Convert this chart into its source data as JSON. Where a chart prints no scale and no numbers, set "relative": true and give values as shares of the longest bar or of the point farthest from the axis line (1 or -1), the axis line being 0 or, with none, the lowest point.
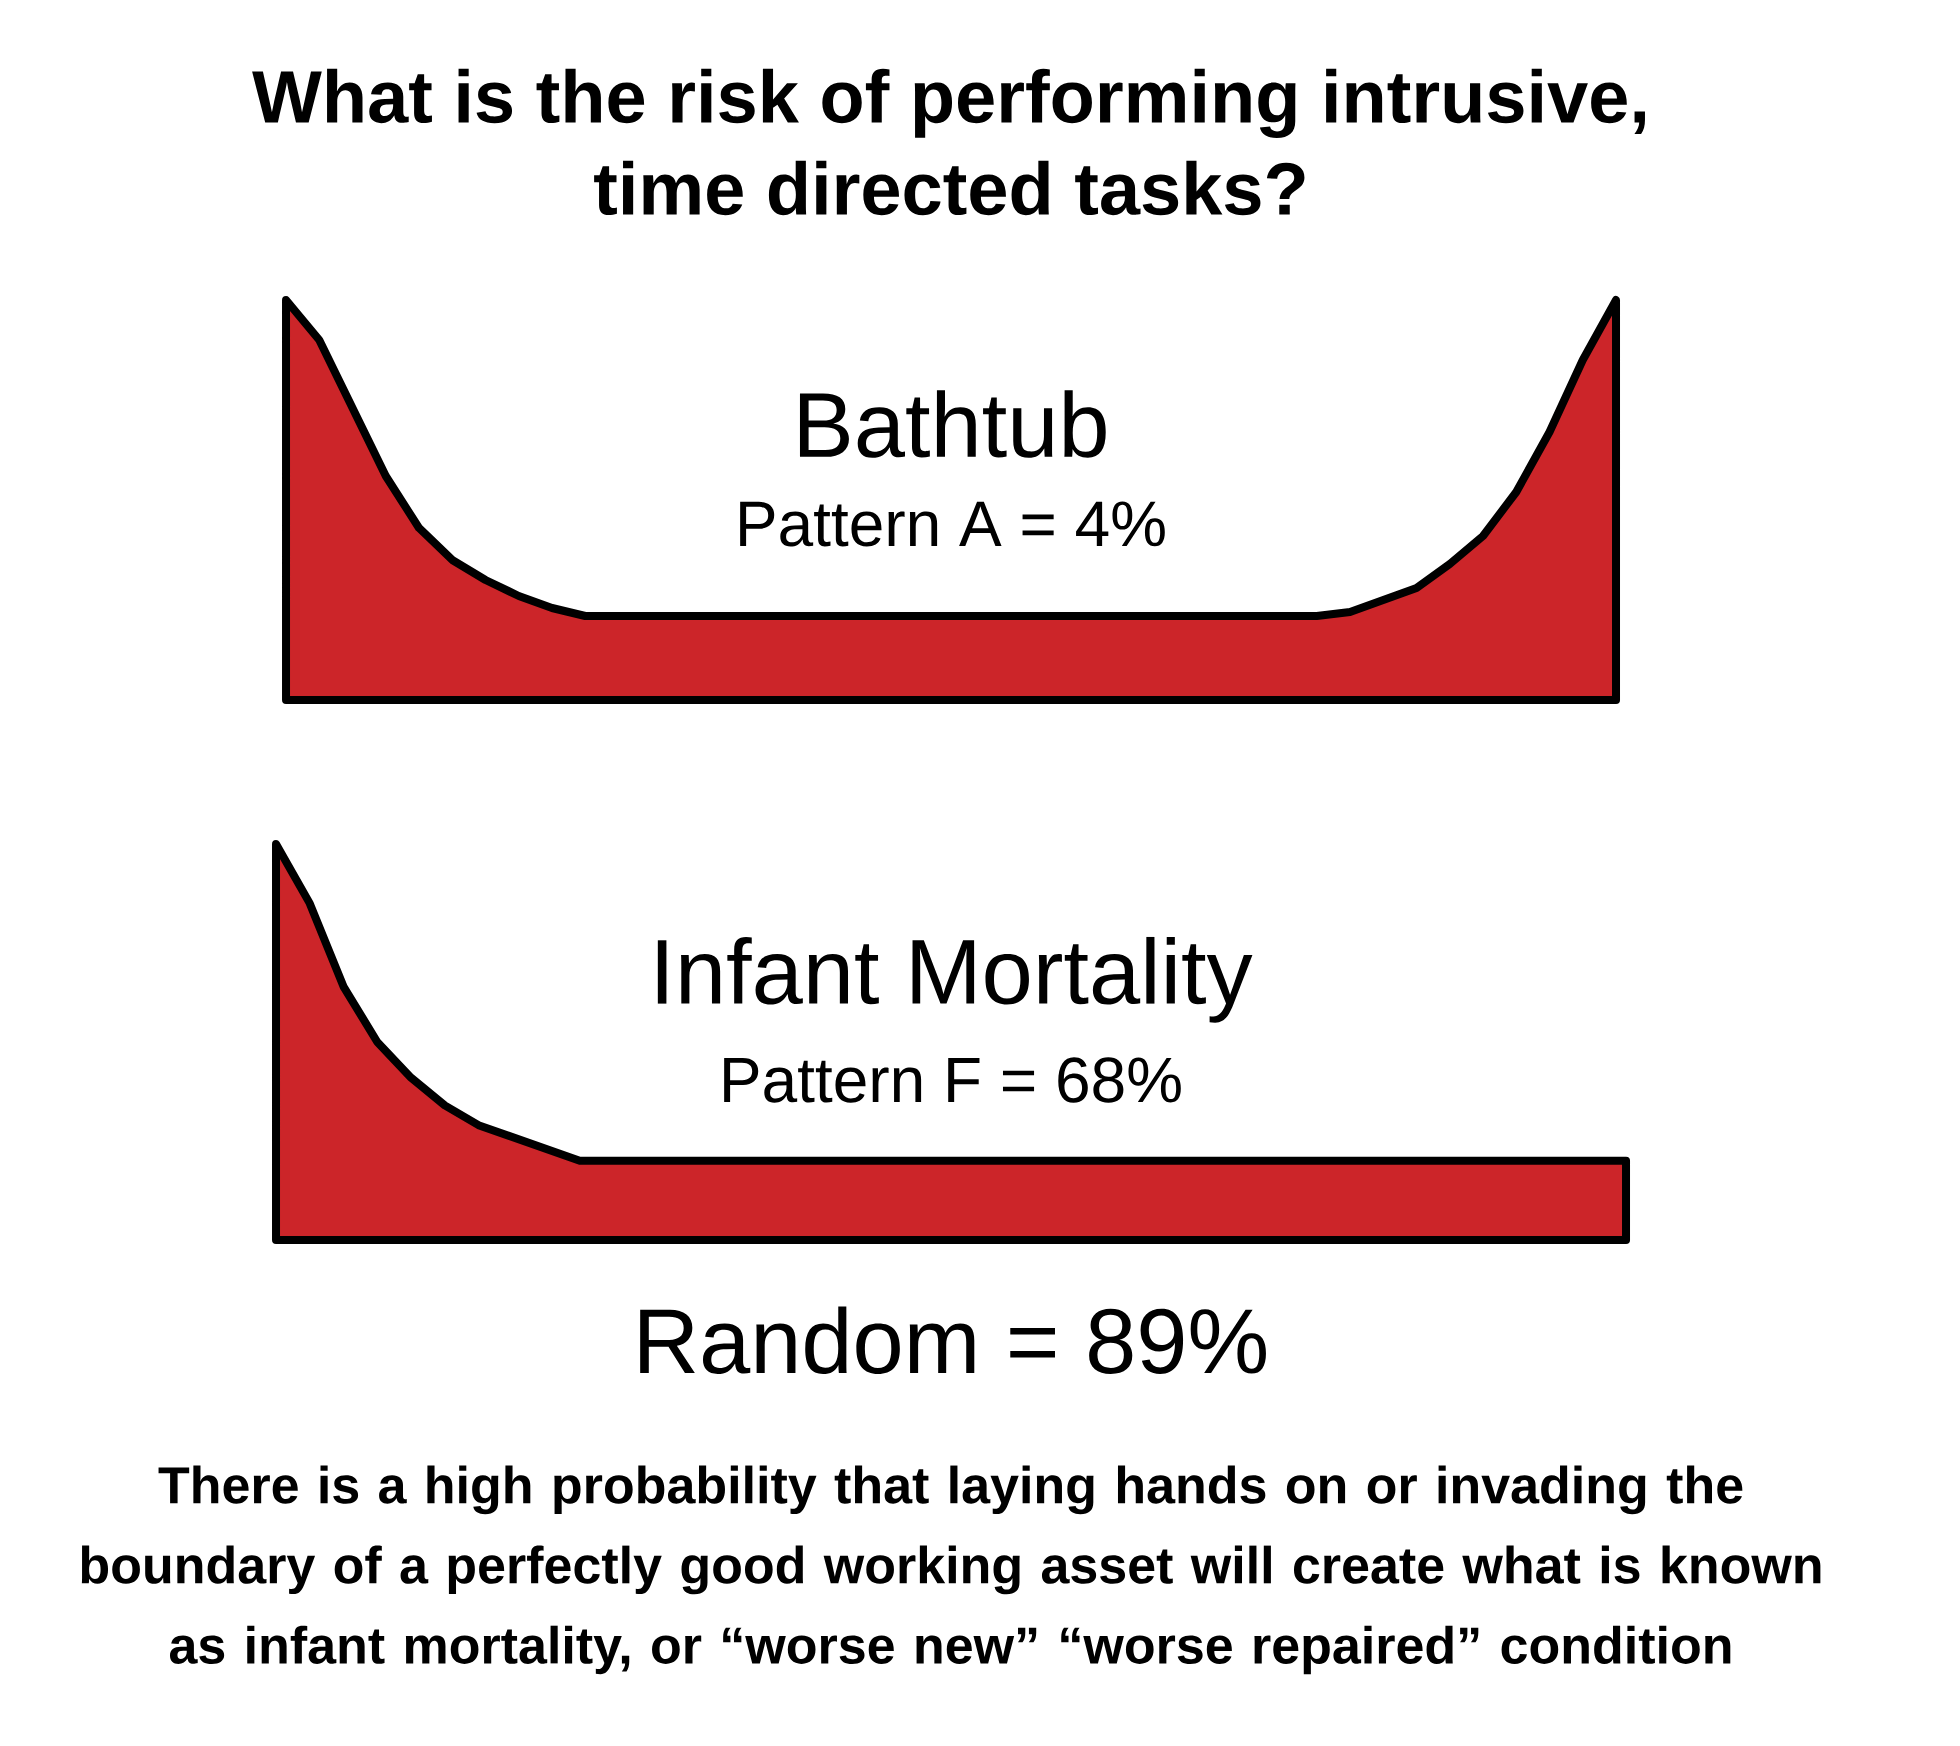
{
  "chart_data": [
    {
      "type": "area",
      "title": "What is the risk of performing intrusive, time directed tasks?",
      "relative": true,
      "categories": [
        null,
        null,
        null,
        null,
        null,
        null,
        null,
        null,
        null,
        null,
        null,
        null,
        null,
        null,
        null,
        null,
        null,
        null,
        null,
        null,
        null,
        null,
        null,
        null,
        null,
        null,
        null,
        null,
        null,
        null,
        null,
        null,
        null,
        null,
        null,
        null,
        null,
        null,
        null,
        null,
        null
      ],
      "series": [
        {
          "name": "Bathtub",
          "color": "#cc2529",
          "values": [
            1.0,
            0.9,
            0.73,
            0.56,
            0.43,
            0.35,
            0.3,
            0.26,
            0.23,
            0.21,
            0.21,
            0.21,
            0.21,
            0.21,
            0.21,
            0.21,
            0.21,
            0.21,
            0.21,
            0.21,
            0.21,
            0.21,
            0.21,
            0.21,
            0.21,
            0.21,
            0.21,
            0.21,
            0.21,
            0.21,
            0.21,
            0.21,
            0.22,
            0.25,
            0.28,
            0.34,
            0.41,
            0.52,
            0.67,
            0.85,
            1.0
          ]
        }
      ],
      "annotations": [
        "Pattern A = 4%"
      ]
    },
    {
      "type": "area",
      "relative": true,
      "categories": [
        null,
        null,
        null,
        null,
        null,
        null,
        null,
        null,
        null,
        null,
        null,
        null,
        null,
        null,
        null,
        null,
        null,
        null,
        null,
        null,
        null,
        null,
        null,
        null,
        null,
        null,
        null,
        null,
        null,
        null,
        null,
        null,
        null,
        null,
        null,
        null,
        null,
        null,
        null,
        null,
        null
      ],
      "series": [
        {
          "name": "Infant Mortality",
          "color": "#cc2529",
          "values": [
            1.0,
            0.85,
            0.64,
            0.5,
            0.41,
            0.34,
            0.29,
            0.26,
            0.23,
            0.2,
            0.2,
            0.2,
            0.2,
            0.2,
            0.2,
            0.2,
            0.2,
            0.2,
            0.2,
            0.2,
            0.2,
            0.2,
            0.2,
            0.2,
            0.2,
            0.2,
            0.2,
            0.2,
            0.2,
            0.2,
            0.2,
            0.2,
            0.2,
            0.2,
            0.2,
            0.2,
            0.2,
            0.2,
            0.2,
            0.2,
            0.2
          ]
        }
      ],
      "annotations": [
        "Pattern F = 68%",
        "Random = 89%",
        "There is a high probability that laying hands on or invading the boundary of a perfectly good working asset will create what is known as infant mortality, or “worse new” “worse repaired” condition"
      ]
    }
  ]
}
